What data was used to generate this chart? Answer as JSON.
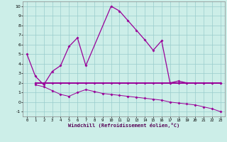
{
  "xlabel": "Windchill (Refroidissement éolien,°C)",
  "xlim_min": -0.5,
  "xlim_max": 23.5,
  "ylim_min": -1.5,
  "ylim_max": 10.5,
  "xticks": [
    0,
    1,
    2,
    3,
    4,
    5,
    6,
    7,
    8,
    9,
    10,
    11,
    12,
    13,
    14,
    15,
    16,
    17,
    18,
    19,
    20,
    21,
    22,
    23
  ],
  "yticks": [
    -1,
    0,
    1,
    2,
    3,
    4,
    5,
    6,
    7,
    8,
    9,
    10
  ],
  "background_color": "#cceee8",
  "grid_color": "#99cccc",
  "line_color": "#990099",
  "line1_x": [
    0,
    1,
    2,
    3,
    4,
    5,
    6,
    7,
    10,
    11,
    12,
    13,
    14,
    15,
    16,
    17,
    18,
    19,
    20,
    21,
    22,
    23
  ],
  "line1_y": [
    5.0,
    2.7,
    1.8,
    3.2,
    3.8,
    5.8,
    6.7,
    3.8,
    10.0,
    9.5,
    8.5,
    7.5,
    6.5,
    5.4,
    6.4,
    2.0,
    2.2,
    2.0,
    2.0,
    2.0,
    2.0,
    2.0
  ],
  "line2_x": [
    1,
    2,
    3,
    4,
    5,
    6,
    7,
    8,
    9,
    10,
    11,
    12,
    13,
    14,
    15,
    16,
    17,
    18,
    19,
    20,
    21,
    22,
    23
  ],
  "line2_y": [
    2.0,
    2.0,
    2.0,
    2.0,
    2.0,
    2.0,
    2.0,
    2.0,
    2.0,
    2.0,
    2.0,
    2.0,
    2.0,
    2.0,
    2.0,
    2.0,
    2.0,
    2.0,
    2.0,
    2.0,
    2.0,
    2.0,
    2.0
  ],
  "line3_x": [
    1,
    2,
    3,
    4,
    5,
    6,
    7,
    8,
    9,
    10,
    11,
    12,
    13,
    14,
    15,
    16,
    17,
    18,
    19,
    20,
    21,
    22,
    23
  ],
  "line3_y": [
    1.8,
    1.6,
    1.2,
    0.8,
    0.6,
    1.0,
    1.3,
    1.1,
    0.9,
    0.8,
    0.7,
    0.6,
    0.5,
    0.4,
    0.3,
    0.2,
    0.0,
    -0.1,
    -0.2,
    -0.3,
    -0.5,
    -0.7,
    -1.0
  ]
}
